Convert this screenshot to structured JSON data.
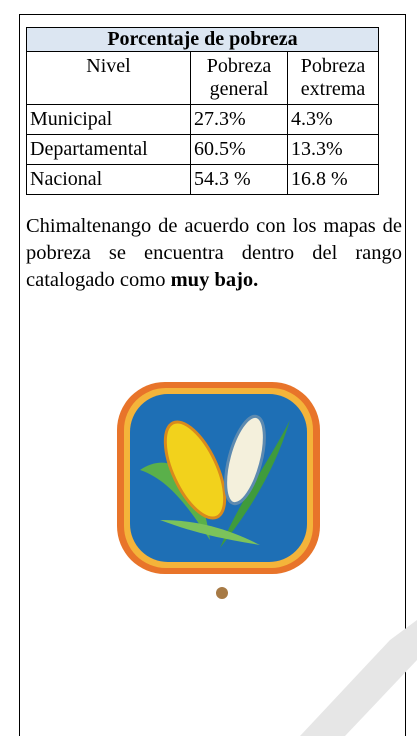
{
  "table": {
    "title": "Porcentaje  de pobreza",
    "header": [
      "Nivel",
      "Pobreza general",
      "Pobreza extrema"
    ],
    "rows": [
      [
        "Municipal",
        "27.3%",
        "4.3%"
      ],
      [
        "Departamental",
        "60.5%",
        "13.3%"
      ],
      [
        "Nacional",
        "54.3 %",
        "16.8 %"
      ]
    ]
  },
  "paragraph": {
    "text": "Chimaltenango de acuerdo con los mapas de pobreza se encuentra dentro del rango catalogado como",
    "bold": "muy bajo."
  }
}
